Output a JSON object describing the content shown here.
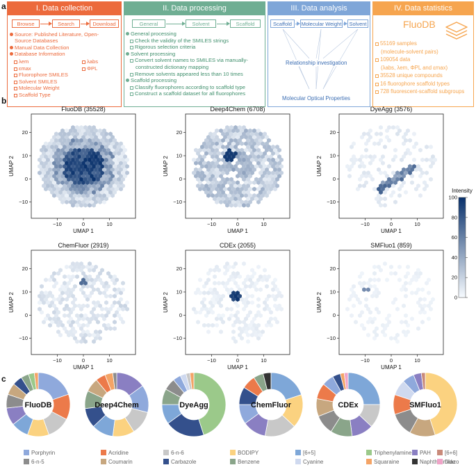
{
  "panel_labels": {
    "a": "a",
    "b": "b",
    "c": "c"
  },
  "section1": {
    "title": "I. Data collection",
    "steps": [
      "Browse",
      "Search",
      "Download"
    ],
    "bullets": [
      "Source: Published Literature, Open-",
      "Source Databases",
      "Manual Data Collection",
      "Database Information"
    ],
    "props_left": [
      "λem",
      "εmax",
      "Fluorophore SMILES",
      "Solvent SMILES",
      "Molecular Weight",
      "Scaffold Type"
    ],
    "props_right": [
      "λabs",
      "ΦPL"
    ]
  },
  "section2": {
    "title": "II. Data processing",
    "steps": [
      "General",
      "Solvent",
      "Scaffold"
    ],
    "general_title": "General processing",
    "general_items": [
      "Check the validity of the SMILES strings",
      "Rigorous selection criteria"
    ],
    "solvent_title": "Solvent processing",
    "solvent_items": [
      "Convert solvent names to SMILES via manually-",
      "constructed dictionary mapping",
      "Remove solvents appeared less than 10 times"
    ],
    "scaffold_title": "Scaffold processing",
    "scaffold_items": [
      "Classify fluorophores according to scaffold type",
      "Construct a scaffold dataset for all fluorophores"
    ]
  },
  "section3": {
    "title": "III. Data analysis",
    "steps": [
      "Scaffold",
      "Molecular Weight",
      "Solvent"
    ],
    "middle": "Relationship investigation",
    "bottom": "Molecular Optical Properties"
  },
  "section4": {
    "title": "IV. Data statistics",
    "db_name": "FluoDB",
    "items": [
      "55169 samples",
      "(molecule-solvent pairs)",
      "109054 data",
      "(λabs, λem, ΦPL and εmax)",
      "35528 unique compounds",
      "16 fluorophore scaffold types",
      "728 fluorescent-scaffold subgroups"
    ]
  },
  "colors": {
    "s1": "#ec6a3c",
    "s2": "#6fae93",
    "s3": "#7fa6d8",
    "s4": "#f6a54f"
  },
  "chart_data": [
    {
      "type": "heatmap",
      "title": "FluoDB (35528)",
      "xlabel": "UMAP 1",
      "ylabel": "UMAP 2",
      "xticks": [
        "−10",
        "0",
        "10"
      ],
      "yticks": [
        "20",
        "10",
        "0",
        "−10"
      ],
      "xlim": [
        -20,
        20
      ],
      "ylim": [
        -17,
        28
      ],
      "density": "dense center",
      "peak_intensity": 100
    },
    {
      "type": "heatmap",
      "title": "Deep4Chem (6708)",
      "xlabel": "UMAP 1",
      "ylabel": "UMAP 2",
      "xticks": [
        "−10",
        "0",
        "10"
      ],
      "yticks": [
        "20",
        "10",
        "0",
        "−10"
      ],
      "xlim": [
        -20,
        20
      ],
      "ylim": [
        -17,
        28
      ],
      "density": "moderate",
      "peak_intensity": 90
    },
    {
      "type": "heatmap",
      "title": "DyeAgg (3576)",
      "xlabel": "UMAP 1",
      "ylabel": "UMAP 2",
      "xticks": [
        "−10",
        "0",
        "10"
      ],
      "yticks": [
        "20",
        "10",
        "0",
        "−10"
      ],
      "xlim": [
        -20,
        20
      ],
      "ylim": [
        -17,
        28
      ],
      "density": "sparse, diagonal cluster",
      "peak_intensity": 80
    },
    {
      "type": "heatmap",
      "title": "ChemFluor (2919)",
      "xlabel": "UMAP 1",
      "ylabel": "UMAP 2",
      "xticks": [
        "−10",
        "0",
        "10"
      ],
      "yticks": [
        "20",
        "10",
        "0",
        "−10"
      ],
      "xlim": [
        -20,
        20
      ],
      "ylim": [
        -17,
        28
      ],
      "density": "sparse",
      "peak_intensity": 70
    },
    {
      "type": "heatmap",
      "title": "CDEx (2055)",
      "xlabel": "UMAP 1",
      "ylabel": "UMAP 2",
      "xticks": [
        "−10",
        "0",
        "10"
      ],
      "yticks": [
        "20",
        "10",
        "0",
        "−10"
      ],
      "xlim": [
        -20,
        20
      ],
      "ylim": [
        -17,
        28
      ],
      "density": "sparse, small hotspot",
      "peak_intensity": 100
    },
    {
      "type": "heatmap",
      "title": "SMFluo1 (859)",
      "xlabel": "UMAP 1",
      "ylabel": "UMAP 2",
      "xticks": [
        "−10",
        "0",
        "10"
      ],
      "yticks": [
        "20",
        "10",
        "0",
        "−10"
      ],
      "xlim": [
        -20,
        20
      ],
      "ylim": [
        -17,
        28
      ],
      "density": "very sparse",
      "peak_intensity": 60
    },
    {
      "type": "colorbar",
      "title": "Intensity",
      "ticks": [
        "100",
        "80",
        "60",
        "40",
        "20",
        "0"
      ],
      "range": [
        0,
        100
      ]
    },
    {
      "type": "pie",
      "title": "FluoDB",
      "values": [
        20,
        13,
        12,
        11,
        9,
        9,
        7,
        6,
        5,
        4,
        3,
        2
      ]
    },
    {
      "type": "pie",
      "title": "Deep4Chem",
      "values": [
        15,
        14,
        12,
        11,
        11,
        10,
        9,
        7,
        5,
        4,
        2
      ]
    },
    {
      "type": "pie",
      "title": "DyeAgg",
      "values": [
        45,
        20,
        10,
        8,
        6,
        4,
        3,
        2,
        2
      ]
    },
    {
      "type": "pie",
      "title": "ChemFluor",
      "values": [
        20,
        17,
        16,
        12,
        10,
        9,
        7,
        5,
        4
      ]
    },
    {
      "type": "pie",
      "title": "CDEx",
      "values": [
        25,
        12,
        11,
        11,
        10,
        9,
        8,
        6,
        4,
        2,
        2
      ]
    },
    {
      "type": "pie",
      "title": "SMFluo1",
      "values": [
        45,
        13,
        12,
        10,
        8,
        6,
        4,
        2
      ]
    }
  ],
  "legend": [
    {
      "label": "Porphyrin",
      "color": "#8fa9dc"
    },
    {
      "label": "Acridine",
      "color": "#ec7a4a"
    },
    {
      "label": "6-n-6",
      "color": "#c8c8c8"
    },
    {
      "label": "BODIPY",
      "color": "#fbd280"
    },
    {
      "label": "[6+5]",
      "color": "#7ea7d8"
    },
    {
      "label": "Triphenylamine",
      "color": "#9bc98a"
    },
    {
      "label": "PAH",
      "color": "#8a7fc2"
    },
    {
      "label": "[6+6]",
      "color": "#c98a7a"
    },
    {
      "label": "6-n-5",
      "color": "#8c8c8c"
    },
    {
      "label": "Coumarin",
      "color": "#c7a77f"
    },
    {
      "label": "Carbazole",
      "color": "#34508c"
    },
    {
      "label": "Benzene",
      "color": "#8aa58a"
    },
    {
      "label": "Cyanine",
      "color": "#cfd9ef"
    },
    {
      "label": "Squaraine",
      "color": "#f4a466"
    },
    {
      "label": "Naphthalimide",
      "color": "#333333"
    },
    {
      "label": "Diazo",
      "color": "#f0a4c8"
    }
  ]
}
